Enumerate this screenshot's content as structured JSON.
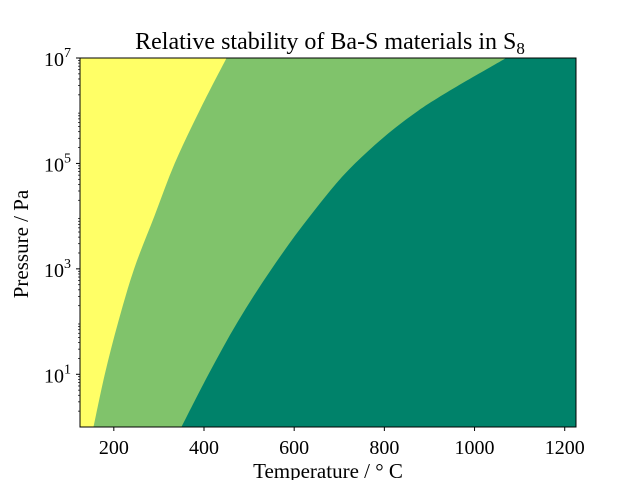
{
  "chart_data": {
    "type": "area",
    "title": "Relative stability of Ba-S materials in S",
    "title_subscript": "8",
    "xlabel": "Temperature / ° C",
    "ylabel": "Pressure / Pa",
    "xlim": [
      125,
      1225
    ],
    "ylim": [
      1,
      10000000
    ],
    "yscale": "log",
    "grid": false,
    "legend": "none",
    "x_ticks": [
      {
        "value": 200,
        "label": "200"
      },
      {
        "value": 400,
        "label": "400"
      },
      {
        "value": 600,
        "label": "600"
      },
      {
        "value": 800,
        "label": "800"
      },
      {
        "value": 1000,
        "label": "1000"
      },
      {
        "value": 1200,
        "label": "1200"
      }
    ],
    "y_ticks": [
      {
        "value": 10,
        "base": "10",
        "exp": "1"
      },
      {
        "value": 1000,
        "base": "10",
        "exp": "3"
      },
      {
        "value": 100000,
        "base": "10",
        "exp": "5"
      },
      {
        "value": 10000000,
        "base": "10",
        "exp": "7"
      }
    ],
    "regions": [
      {
        "color": "#ffff66"
      },
      {
        "color": "#80c36b"
      },
      {
        "color": "#00826a"
      }
    ],
    "boundaries": [
      {
        "separates": [
          0,
          1
        ],
        "points": [
          {
            "x": 155,
            "y": 1
          },
          {
            "x": 180,
            "y": 10
          },
          {
            "x": 210,
            "y": 100
          },
          {
            "x": 245,
            "y": 1000
          },
          {
            "x": 290,
            "y": 10000
          },
          {
            "x": 335,
            "y": 100000
          },
          {
            "x": 390,
            "y": 1000000
          },
          {
            "x": 450,
            "y": 10000000
          }
        ]
      },
      {
        "separates": [
          1,
          2
        ],
        "points": [
          {
            "x": 350,
            "y": 1
          },
          {
            "x": 410,
            "y": 10
          },
          {
            "x": 475,
            "y": 100
          },
          {
            "x": 550,
            "y": 1000
          },
          {
            "x": 635,
            "y": 10000
          },
          {
            "x": 735,
            "y": 100000
          },
          {
            "x": 875,
            "y": 1000000
          },
          {
            "x": 1070,
            "y": 10000000
          }
        ]
      }
    ]
  }
}
